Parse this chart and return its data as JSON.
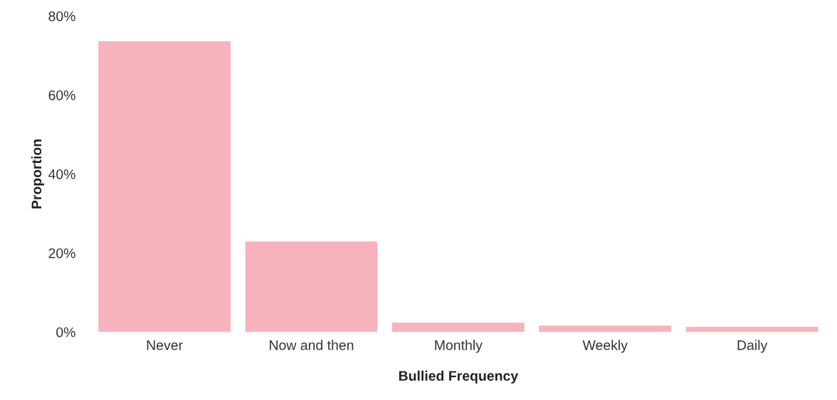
{
  "chart_data": {
    "type": "bar",
    "xlabel": "Bullied Frequency",
    "ylabel": "Proportion",
    "categories": [
      "Never",
      "Now and then",
      "Monthly",
      "Weekly",
      "Daily"
    ],
    "values": [
      73.6,
      22.9,
      2.4,
      1.6,
      1.3
    ],
    "color": "#f7b2bd",
    "ylim": [
      0,
      80
    ],
    "yticks": [
      {
        "value": 0,
        "label": "0%"
      },
      {
        "value": 20,
        "label": "20%"
      },
      {
        "value": 40,
        "label": "40%"
      },
      {
        "value": 60,
        "label": "60%"
      },
      {
        "value": 80,
        "label": "80%"
      }
    ],
    "grid": false
  }
}
